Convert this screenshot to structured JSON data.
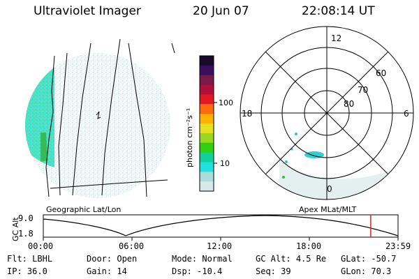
{
  "header": {
    "instrument": "Ultraviolet Imager",
    "date": "20 Jun 07",
    "time": "22:08:14 UT"
  },
  "geo_panel": {
    "label": "Geographic Lat/Lon"
  },
  "polar_panel": {
    "label": "Apex MLat/MLT",
    "mlt_labels": {
      "top": "12",
      "left": "18",
      "right": "6",
      "bottom": "0"
    },
    "lat_labels": [
      "60",
      "70",
      "80"
    ]
  },
  "colorbar": {
    "unit_label": "photon cm⁻²s⁻¹",
    "ticks": [
      "100",
      "10"
    ],
    "colors": [
      "#1a0a2a",
      "#3b0f5e",
      "#7a1a4a",
      "#b0103a",
      "#e01a20",
      "#ff6a10",
      "#ffb000",
      "#e6e020",
      "#9ad820",
      "#30d010",
      "#10d0a0",
      "#20e0e0",
      "#a8dcdc",
      "#d8e8e8"
    ]
  },
  "altitude_plot": {
    "ylabel": "GC Alt",
    "yticks": [
      "9.0",
      "1.8"
    ],
    "xticks": [
      "00:00",
      "06:00",
      "12:00",
      "18:00",
      "23:59"
    ],
    "current_time_marker": "22:08:14",
    "marker_color": "#e02020"
  },
  "status": [
    [
      {
        "key": "Flt:",
        "value": "LBHL"
      },
      {
        "key": "Door:",
        "value": "Open"
      },
      {
        "key": "Mode:",
        "value": "Normal"
      },
      {
        "key": "GC Alt:",
        "value": "4.5 Re"
      },
      {
        "key": "GLat:",
        "value": "-50.7"
      }
    ],
    [
      {
        "key": "IP:",
        "value": "36.0"
      },
      {
        "key": "Gain:",
        "value": "14"
      },
      {
        "key": "Dsp:",
        "value": "-10.4"
      },
      {
        "key": "Seq:",
        "value": "39"
      },
      {
        "key": "GLon:",
        "value": "70.3"
      }
    ]
  ]
}
